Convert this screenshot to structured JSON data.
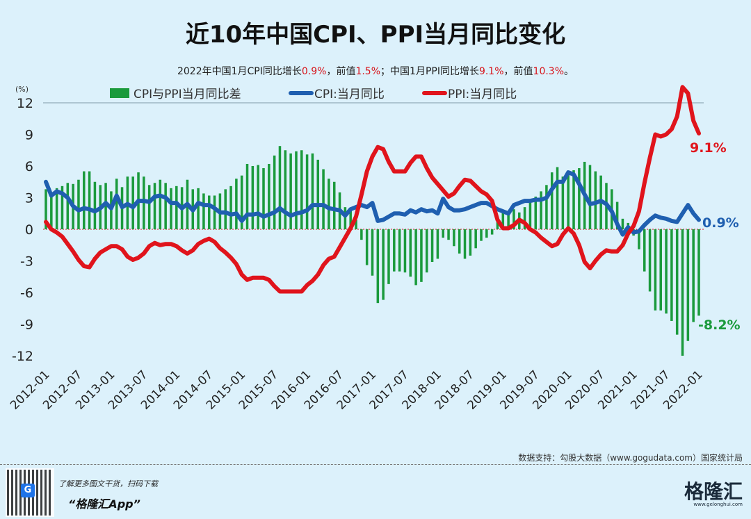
{
  "header": {
    "title": "近10年中国CPI、PPI当月同比变化",
    "subtitle_parts": [
      "2022年中国1月CPI同比增长",
      "0.9%",
      "，前值",
      "1.5%",
      "；中国1月PPI同比增长",
      "9.1%",
      "，前值",
      "10.3%",
      "。"
    ]
  },
  "footer": {
    "source": "数据支持：勾股大数据（www.gogudata.com）国家统计局",
    "promo": "了解更多图文干货，扫码下载",
    "app": "“格隆汇App”",
    "logo": "格隆汇",
    "logo_url": "www.gelonghui.com"
  },
  "chart_data": {
    "type": "bar+line",
    "ylabel": "(%)",
    "ylim": [
      -12,
      12
    ],
    "yticks": [
      12,
      9,
      6,
      3,
      0,
      -3,
      -6,
      -9,
      -12
    ],
    "xlim": [
      "2012-01",
      "2022-01"
    ],
    "xticks": [
      "2012-01",
      "2012-07",
      "2013-01",
      "2013-07",
      "2014-01",
      "2014-07",
      "2015-01",
      "2015-07",
      "2016-01",
      "2016-07",
      "2017-01",
      "2017-07",
      "2018-01",
      "2018-07",
      "2019-01",
      "2019-07",
      "2020-01",
      "2020-07",
      "2021-01",
      "2021-07",
      "2022-01"
    ],
    "legend_position": "top",
    "colors": {
      "diff": "#1a9a3c",
      "cpi": "#1f5fb0",
      "ppi": "#e0141c",
      "zero_line": "#d8141b"
    },
    "end_labels": {
      "ppi": "9.1%",
      "cpi": "0.9%",
      "diff": "-8.2%"
    },
    "series": [
      {
        "name": "CPI与PPI当月同比差",
        "type": "bar",
        "values": [
          3.8,
          3.2,
          3.9,
          4.1,
          4.4,
          4.3,
          4.7,
          5.5,
          5.5,
          4.5,
          4.2,
          4.4,
          3.6,
          4.8,
          4.0,
          5.0,
          5.0,
          5.4,
          5.0,
          4.2,
          4.4,
          4.7,
          4.4,
          3.9,
          4.1,
          4.0,
          4.7,
          3.8,
          3.9,
          3.4,
          3.2,
          3.2,
          3.4,
          3.8,
          4.1,
          4.8,
          5.1,
          6.2,
          6.0,
          6.1,
          5.8,
          6.2,
          7.0,
          7.9,
          7.5,
          7.2,
          7.4,
          7.5,
          7.1,
          7.2,
          6.6,
          5.7,
          4.8,
          4.5,
          3.5,
          2.1,
          1.8,
          0.9,
          -1.0,
          -3.4,
          -4.4,
          -7.0,
          -6.7,
          -5.2,
          -4.0,
          -4.0,
          -4.1,
          -4.5,
          -5.3,
          -5.0,
          -4.1,
          -3.1,
          -2.8,
          -0.8,
          -1.0,
          -1.6,
          -2.3,
          -2.8,
          -2.5,
          -1.8,
          -1.1,
          -0.8,
          -0.5,
          1.0,
          1.6,
          1.4,
          1.9,
          1.6,
          2.1,
          2.7,
          3.1,
          3.6,
          4.2,
          5.4,
          5.9,
          5.0,
          5.3,
          5.6,
          5.8,
          6.4,
          6.1,
          5.5,
          5.1,
          4.4,
          3.8,
          2.6,
          1.0,
          0.6,
          -0.6,
          -1.9,
          -4.0,
          -5.9,
          -7.7,
          -7.7,
          -8.0,
          -8.7,
          -10.0,
          -12.0,
          -10.6,
          -8.8,
          -8.2
        ]
      },
      {
        "name": "CPI:当月同比",
        "type": "line",
        "values": [
          4.5,
          3.2,
          3.6,
          3.4,
          3.0,
          2.2,
          1.8,
          2.0,
          1.9,
          1.7,
          2.0,
          2.5,
          2.0,
          3.2,
          2.1,
          2.4,
          2.1,
          2.7,
          2.7,
          2.6,
          3.1,
          3.2,
          3.0,
          2.5,
          2.5,
          2.0,
          2.4,
          1.8,
          2.5,
          2.3,
          2.3,
          2.0,
          1.6,
          1.6,
          1.4,
          1.5,
          0.8,
          1.4,
          1.4,
          1.5,
          1.2,
          1.4,
          1.6,
          2.0,
          1.6,
          1.3,
          1.5,
          1.6,
          1.8,
          2.3,
          2.3,
          2.3,
          2.0,
          1.9,
          1.8,
          1.3,
          1.9,
          2.1,
          2.3,
          2.1,
          2.5,
          0.8,
          0.9,
          1.2,
          1.5,
          1.5,
          1.4,
          1.8,
          1.6,
          1.9,
          1.7,
          1.8,
          1.5,
          2.9,
          2.1,
          1.8,
          1.8,
          1.9,
          2.1,
          2.3,
          2.5,
          2.5,
          2.2,
          1.9,
          1.7,
          1.5,
          2.3,
          2.5,
          2.7,
          2.7,
          2.8,
          2.8,
          3.0,
          3.8,
          4.5,
          4.5,
          5.4,
          5.2,
          4.3,
          3.3,
          2.4,
          2.5,
          2.7,
          2.4,
          1.7,
          0.5,
          -0.5,
          0.2,
          -0.3,
          -0.2,
          0.4,
          0.9,
          1.3,
          1.1,
          1.0,
          0.8,
          0.7,
          1.5,
          2.3,
          1.5,
          0.9
        ]
      },
      {
        "name": "PPI:当月同比",
        "type": "line",
        "values": [
          0.7,
          0.0,
          -0.3,
          -0.7,
          -1.4,
          -2.1,
          -2.9,
          -3.5,
          -3.6,
          -2.8,
          -2.2,
          -1.9,
          -1.6,
          -1.6,
          -1.9,
          -2.6,
          -2.9,
          -2.7,
          -2.3,
          -1.6,
          -1.3,
          -1.5,
          -1.4,
          -1.4,
          -1.6,
          -2.0,
          -2.3,
          -2.0,
          -1.4,
          -1.1,
          -0.9,
          -1.2,
          -1.8,
          -2.2,
          -2.7,
          -3.3,
          -4.3,
          -4.8,
          -4.6,
          -4.6,
          -4.6,
          -4.8,
          -5.4,
          -5.9,
          -5.9,
          -5.9,
          -5.9,
          -5.9,
          -5.3,
          -4.9,
          -4.3,
          -3.4,
          -2.8,
          -2.6,
          -1.7,
          -0.8,
          0.1,
          1.2,
          3.3,
          5.5,
          6.9,
          7.8,
          7.6,
          6.4,
          5.5,
          5.5,
          5.5,
          6.3,
          6.9,
          6.9,
          5.8,
          4.9,
          4.3,
          3.7,
          3.1,
          3.4,
          4.1,
          4.7,
          4.6,
          4.1,
          3.6,
          3.3,
          2.7,
          0.9,
          0.1,
          0.1,
          0.4,
          0.9,
          0.6,
          0.0,
          -0.3,
          -0.8,
          -1.2,
          -1.6,
          -1.4,
          -0.5,
          0.1,
          -0.4,
          -1.5,
          -3.1,
          -3.7,
          -3.0,
          -2.4,
          -2.0,
          -2.1,
          -2.1,
          -1.5,
          -0.4,
          0.3,
          1.7,
          4.4,
          6.8,
          9.0,
          8.8,
          9.0,
          9.5,
          10.7,
          13.5,
          12.9,
          10.3,
          9.1
        ]
      }
    ]
  }
}
